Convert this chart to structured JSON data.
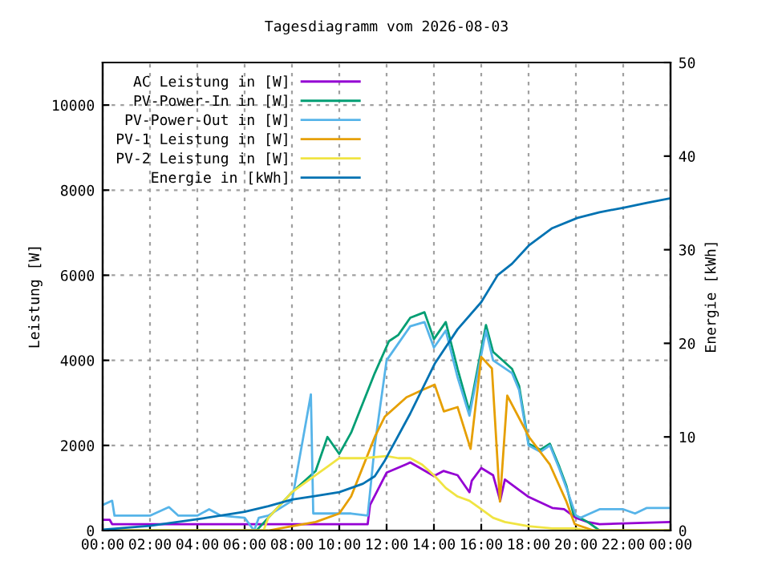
{
  "chart_data": {
    "type": "line",
    "title": "Tagesdiagramm vom 2026-08-03",
    "ylabel": "Leistung [W]",
    "y2label": "Energie [kWh]",
    "xlim": [
      0,
      24
    ],
    "xticks": [
      {
        "value": 0,
        "label": "00:00"
      },
      {
        "value": 2,
        "label": "02:00"
      },
      {
        "value": 4,
        "label": "04:00"
      },
      {
        "value": 6,
        "label": "06:00"
      },
      {
        "value": 8,
        "label": "08:00"
      },
      {
        "value": 10,
        "label": "10:00"
      },
      {
        "value": 12,
        "label": "12:00"
      },
      {
        "value": 14,
        "label": "14:00"
      },
      {
        "value": 16,
        "label": "16:00"
      },
      {
        "value": 18,
        "label": "18:00"
      },
      {
        "value": 20,
        "label": "20:00"
      },
      {
        "value": 22,
        "label": "22:00"
      },
      {
        "value": 24,
        "label": "00:00"
      }
    ],
    "ylim": [
      0,
      11000
    ],
    "yticks": [
      0,
      2000,
      4000,
      6000,
      8000,
      10000
    ],
    "y2lim": [
      0,
      50
    ],
    "y2ticks": [
      0,
      10,
      20,
      30,
      40,
      50
    ],
    "grid": true,
    "legend": "top left",
    "marker": "none",
    "line_style": "solid",
    "series": [
      {
        "name": "AC Leistung in [W]",
        "color": "#9400d3",
        "x": [
          0,
          0.3,
          0.4,
          6,
          8,
          10,
          11.2,
          11.3,
          12,
          12.8,
          13,
          14,
          14.4,
          15,
          15.5,
          15.6,
          16,
          16.5,
          16.8,
          17,
          18,
          19,
          19.5,
          20,
          20.5,
          21,
          24
        ],
        "values": [
          250,
          250,
          150,
          150,
          150,
          150,
          150,
          600,
          1360,
          1550,
          1600,
          1280,
          1400,
          1300,
          900,
          1170,
          1470,
          1300,
          700,
          1200,
          790,
          530,
          500,
          300,
          200,
          150,
          200
        ]
      },
      {
        "name": "PV-Power-In in [W]",
        "color": "#009e73",
        "x": [
          0,
          6.5,
          7,
          8,
          9,
          9.5,
          10,
          10.5,
          11,
          11.5,
          12.1,
          12.5,
          13,
          13.6,
          14,
          14.5,
          15,
          15.5,
          16.2,
          16.5,
          17.3,
          17.6,
          18,
          18.5,
          18.9,
          19.3,
          19.6,
          19.9,
          20.5,
          21,
          24
        ],
        "values": [
          0,
          0,
          300,
          900,
          1400,
          2200,
          1800,
          2300,
          3000,
          3700,
          4450,
          4600,
          5000,
          5130,
          4500,
          4900,
          3800,
          2800,
          4830,
          4200,
          3800,
          3400,
          2040,
          1900,
          2040,
          1500,
          1050,
          380,
          200,
          0,
          0
        ]
      },
      {
        "name": "PV-Power-Out in [W]",
        "color": "#56b4e9",
        "x": [
          0,
          0.4,
          0.5,
          2,
          2.8,
          3.2,
          4,
          4.5,
          5,
          6,
          6.4,
          6.6,
          7,
          8,
          8.8,
          8.9,
          9.5,
          10.5,
          11.2,
          11.5,
          12,
          12.5,
          13,
          13.6,
          14,
          14.5,
          15,
          15.5,
          16.2,
          16.5,
          17.3,
          17.6,
          18,
          18.5,
          18.9,
          19.3,
          19.6,
          20,
          20.2,
          21,
          22,
          22.5,
          23,
          24
        ],
        "values": [
          600,
          700,
          350,
          350,
          550,
          350,
          350,
          500,
          350,
          300,
          0,
          300,
          350,
          700,
          3200,
          400,
          400,
          400,
          350,
          2000,
          4000,
          4400,
          4800,
          4900,
          4300,
          4700,
          3600,
          2700,
          4700,
          4000,
          3700,
          3300,
          2000,
          1850,
          2000,
          1450,
          1000,
          350,
          300,
          500,
          500,
          400,
          530,
          530
        ]
      },
      {
        "name": "PV-1 Leistung in [W]",
        "color": "#e69f00",
        "x": [
          0,
          7,
          8,
          9,
          10,
          10.5,
          11,
          11.5,
          11.93,
          12.84,
          13.5,
          14.03,
          14.42,
          15,
          15.55,
          16.0,
          16.45,
          16.79,
          17.1,
          18.03,
          18.9,
          19.6,
          19.95,
          20.75,
          24
        ],
        "values": [
          0,
          0,
          100,
          200,
          400,
          800,
          1500,
          2200,
          2680,
          3130,
          3300,
          3430,
          2800,
          2900,
          1920,
          4080,
          3810,
          680,
          3170,
          2190,
          1550,
          680,
          150,
          0,
          0
        ]
      },
      {
        "name": "PV-2 Leistung in [W]",
        "color": "#f0e442",
        "x": [
          0,
          6.8,
          7,
          8,
          9,
          9.5,
          10,
          11,
          12,
          12.5,
          13,
          13.5,
          14,
          14.5,
          15,
          15.5,
          16,
          16.5,
          17,
          18,
          19,
          20,
          20.5,
          24
        ],
        "values": [
          0,
          0,
          300,
          900,
          1300,
          1500,
          1700,
          1700,
          1750,
          1700,
          1700,
          1550,
          1300,
          1000,
          800,
          700,
          500,
          300,
          200,
          100,
          50,
          50,
          0,
          0
        ]
      },
      {
        "name": "Energie in [kWh]",
        "color": "#0072b2",
        "axis": "y2",
        "x": [
          0,
          2,
          4,
          6,
          7,
          8,
          9,
          10,
          11,
          11.5,
          11.93,
          13,
          14.03,
          15,
          16.0,
          16.7,
          17.3,
          18.03,
          19,
          20.07,
          21,
          22.03,
          23,
          24
        ],
        "values": [
          0.1,
          0.5,
          1.2,
          2.0,
          2.6,
          3.3,
          3.7,
          4.1,
          5.0,
          5.8,
          7.5,
          12.5,
          17.8,
          21.5,
          24.4,
          27.3,
          28.5,
          30.5,
          32.3,
          33.4,
          34.0,
          34.5,
          35.0,
          35.5
        ]
      }
    ]
  }
}
